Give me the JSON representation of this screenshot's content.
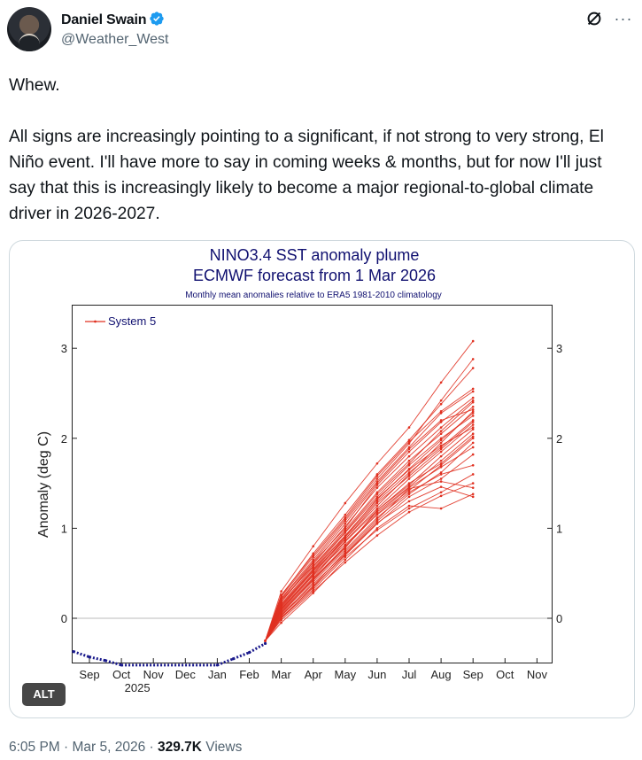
{
  "author": {
    "name": "Daniel Swain",
    "handle": "@Weather_West",
    "avatar_icon": "avatar-photo",
    "verified_icon": "verified-badge-icon",
    "verified_color": "#1d9bf0"
  },
  "tweet": {
    "text": "Whew.\n\nAll signs are increasingly pointing to a significant, if not strong to very strong, El Niño event. I'll have more to say in coming weeks & months, but for now I'll just say that this is increasingly likely to become a major regional-to-global climate driver in 2026-2027."
  },
  "media": {
    "alt_label": "ALT"
  },
  "footer": {
    "time": "6:05 PM",
    "sep1": " · ",
    "date": "Mar 5, 2026",
    "sep2": " · ",
    "views_count": "329.7K",
    "views_label": " Views"
  },
  "chart_data": {
    "type": "line",
    "title": "NINO3.4 SST anomaly plume",
    "subtitle": "ECMWF forecast from 1 Mar 2026",
    "note": "Monthly mean anomalies relative to ERA5 1981-2010 climatology",
    "ylabel": "Anomaly (deg C)",
    "ylim": [
      -0.5,
      3.5
    ],
    "yticks": [
      0,
      1,
      2,
      3
    ],
    "months": [
      "Sep",
      "Oct",
      "Nov",
      "Dec",
      "Jan",
      "Feb",
      "Mar",
      "Apr",
      "May",
      "Jun",
      "Jul",
      "Aug",
      "Sep",
      "Oct",
      "Nov"
    ],
    "year_label": "2025",
    "year_under_month_index": 1,
    "legend": "System 5",
    "line_color": "#e03020",
    "obs_color": "#1a1a8c",
    "observed": [
      {
        "x": -0.5,
        "y": -0.37
      },
      {
        "x": 0.0,
        "y": -0.43
      },
      {
        "x": 0.5,
        "y": -0.47
      },
      {
        "x": 1.0,
        "y": -0.52
      },
      {
        "x": 4.0,
        "y": -0.52
      },
      {
        "x": 4.5,
        "y": -0.45
      },
      {
        "x": 5.0,
        "y": -0.38
      },
      {
        "x": 5.5,
        "y": -0.28
      }
    ],
    "forecast_origin": {
      "x": 5.5,
      "y": -0.25
    },
    "forecast_months": [
      6.0,
      7.0,
      8.0,
      9.0,
      10.0,
      11.0,
      12.0
    ],
    "members": [
      [
        0.05,
        0.42,
        0.78,
        1.2,
        1.5,
        1.72,
        2.02
      ],
      [
        0.1,
        0.5,
        0.9,
        1.3,
        1.62,
        1.9,
        2.2
      ],
      [
        0.18,
        0.6,
        1.02,
        1.45,
        1.8,
        2.12,
        2.42
      ],
      [
        0.25,
        0.72,
        1.15,
        1.6,
        1.98,
        2.38,
        2.78
      ],
      [
        0.3,
        0.8,
        1.28,
        1.72,
        2.12,
        2.62,
        3.08
      ],
      [
        0.0,
        0.35,
        0.7,
        1.05,
        1.35,
        1.55,
        1.82
      ],
      [
        -0.02,
        0.3,
        0.62,
        0.92,
        1.18,
        1.36,
        1.5
      ],
      [
        0.04,
        0.38,
        0.72,
        1.08,
        1.38,
        1.62,
        1.95
      ],
      [
        0.12,
        0.52,
        0.88,
        1.25,
        1.6,
        1.95,
        2.3
      ],
      [
        0.2,
        0.58,
        0.98,
        1.4,
        1.75,
        2.05,
        2.35
      ],
      [
        0.08,
        0.45,
        0.85,
        1.2,
        1.48,
        1.8,
        2.1
      ],
      [
        0.15,
        0.55,
        0.95,
        1.35,
        1.7,
        2.0,
        2.25
      ],
      [
        -0.05,
        0.28,
        0.65,
        1.0,
        1.25,
        1.22,
        1.38
      ],
      [
        0.1,
        0.48,
        0.82,
        1.15,
        1.42,
        1.7,
        2.0
      ],
      [
        0.22,
        0.65,
        1.08,
        1.52,
        1.9,
        2.28,
        2.52
      ],
      [
        0.02,
        0.4,
        0.76,
        1.12,
        1.4,
        1.6,
        1.7
      ],
      [
        0.18,
        0.62,
        1.0,
        1.48,
        1.85,
        2.18,
        2.45
      ],
      [
        0.06,
        0.44,
        0.8,
        1.18,
        1.46,
        1.75,
        2.05
      ],
      [
        0.14,
        0.54,
        0.92,
        1.32,
        1.66,
        1.98,
        2.28
      ],
      [
        0.26,
        0.7,
        1.12,
        1.58,
        1.96,
        2.3,
        2.55
      ],
      [
        0.0,
        0.32,
        0.68,
        0.98,
        1.22,
        1.4,
        1.6
      ],
      [
        0.09,
        0.47,
        0.86,
        1.22,
        1.55,
        1.85,
        2.15
      ],
      [
        0.16,
        0.57,
        0.96,
        1.38,
        1.72,
        2.08,
        2.4
      ],
      [
        0.03,
        0.36,
        0.74,
        1.1,
        1.44,
        1.52,
        1.45
      ],
      [
        0.11,
        0.49,
        0.88,
        1.28,
        1.58,
        1.88,
        2.18
      ],
      [
        0.21,
        0.63,
        1.05,
        1.5,
        1.88,
        2.2,
        2.32
      ],
      [
        0.07,
        0.43,
        0.79,
        1.16,
        1.45,
        1.68,
        1.9
      ],
      [
        0.13,
        0.53,
        0.91,
        1.33,
        1.65,
        1.92,
        2.12
      ],
      [
        0.24,
        0.68,
        1.1,
        1.55,
        1.94,
        2.42,
        2.88
      ],
      [
        0.01,
        0.34,
        0.71,
        1.06,
        1.3,
        1.46,
        1.35
      ]
    ]
  }
}
